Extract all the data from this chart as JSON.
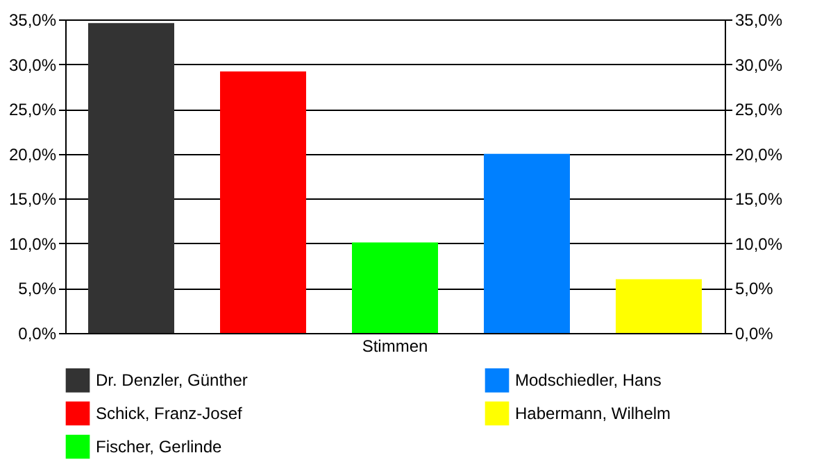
{
  "chart_data": {
    "type": "bar",
    "categories": [
      "Stimmen"
    ],
    "series": [
      {
        "name": "Dr. Denzler, Günther",
        "color": "#333333",
        "values": [
          34.6
        ]
      },
      {
        "name": "Schick, Franz-Josef",
        "color": "#ff0000",
        "values": [
          29.2
        ]
      },
      {
        "name": "Fischer, Gerlinde",
        "color": "#00ff00",
        "values": [
          10.1
        ]
      },
      {
        "name": "Modschiedler, Hans",
        "color": "#0080ff",
        "values": [
          20.0
        ]
      },
      {
        "name": "Habermann, Wilhelm",
        "color": "#ffff00",
        "values": [
          6.0
        ]
      }
    ],
    "ylim": [
      0,
      35
    ],
    "yticks": [
      {
        "value": 0,
        "label": "0,0%"
      },
      {
        "value": 5,
        "label": "5,0%"
      },
      {
        "value": 10,
        "label": "10,0%"
      },
      {
        "value": 15,
        "label": "15,0%"
      },
      {
        "value": 20,
        "label": "20,0%"
      },
      {
        "value": 25,
        "label": "25,0%"
      },
      {
        "value": 30,
        "label": "30,0%"
      },
      {
        "value": 35,
        "label": "35,0%"
      }
    ],
    "grid": "y",
    "legend": "bottom"
  }
}
